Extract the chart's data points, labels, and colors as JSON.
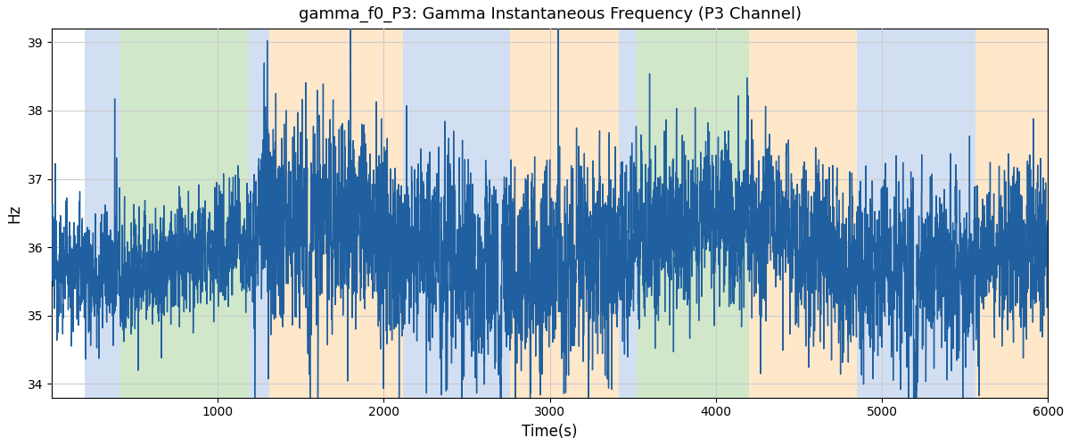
{
  "title": "gamma_f0_P3: Gamma Instantaneous Frequency (P3 Channel)",
  "xlabel": "Time(s)",
  "ylabel": "Hz",
  "xlim": [
    0,
    6000
  ],
  "ylim": [
    33.8,
    39.2
  ],
  "yticks": [
    34,
    35,
    36,
    37,
    38,
    39
  ],
  "xticks": [
    1000,
    2000,
    3000,
    4000,
    5000,
    6000
  ],
  "line_color": "#2060a0",
  "line_width": 1.0,
  "background_color": "#ffffff",
  "grid_color": "#cccccc",
  "title_fontsize": 13,
  "axis_label_fontsize": 12,
  "colored_regions": [
    {
      "xmin": 200,
      "xmax": 415,
      "color": "#adc6e8",
      "alpha": 0.55
    },
    {
      "xmin": 415,
      "xmax": 1185,
      "color": "#aad4a0",
      "alpha": 0.55
    },
    {
      "xmin": 1185,
      "xmax": 1310,
      "color": "#adc6e8",
      "alpha": 0.55
    },
    {
      "xmin": 1310,
      "xmax": 2115,
      "color": "#ffd5a0",
      "alpha": 0.55
    },
    {
      "xmin": 2115,
      "xmax": 2760,
      "color": "#adc6e8",
      "alpha": 0.55
    },
    {
      "xmin": 2760,
      "xmax": 3415,
      "color": "#ffd5a0",
      "alpha": 0.55
    },
    {
      "xmin": 3415,
      "xmax": 3520,
      "color": "#adc6e8",
      "alpha": 0.55
    },
    {
      "xmin": 3520,
      "xmax": 4200,
      "color": "#aad4a0",
      "alpha": 0.55
    },
    {
      "xmin": 4200,
      "xmax": 4850,
      "color": "#ffd5a0",
      "alpha": 0.55
    },
    {
      "xmin": 4850,
      "xmax": 5560,
      "color": "#adc6e8",
      "alpha": 0.55
    },
    {
      "xmin": 5560,
      "xmax": 5670,
      "color": "#ffd5a0",
      "alpha": 0.55
    },
    {
      "xmin": 5670,
      "xmax": 6000,
      "color": "#ffd5a0",
      "alpha": 0.55
    }
  ],
  "seed": 12345,
  "n_points": 6000,
  "mean_freq": 36.0
}
